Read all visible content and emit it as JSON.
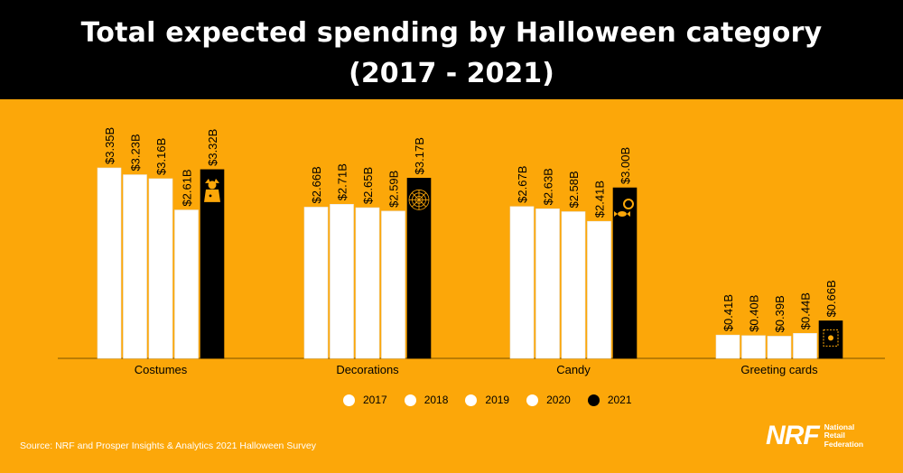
{
  "header": {
    "title_line1": "Total expected spending by Halloween category",
    "title_line2": "(2017 - 2021)"
  },
  "colors": {
    "background": "#fca709",
    "header": "#000000",
    "bar_prior": "#ffffff",
    "bar_2021": "#000000",
    "icon": "#fca709"
  },
  "chart_data": {
    "type": "bar",
    "title": "Total expected spending by Halloween category (2017 - 2021)",
    "categories": [
      "Costumes",
      "Decorations",
      "Candy",
      "Greeting cards"
    ],
    "series": [
      {
        "name": "2017",
        "values": [
          3.35,
          2.66,
          2.67,
          0.41
        ],
        "labels": [
          "$3.35B",
          "$2.66B",
          "$2.67B",
          "$0.41B"
        ],
        "color": "#ffffff"
      },
      {
        "name": "2018",
        "values": [
          3.23,
          2.71,
          2.63,
          0.4
        ],
        "labels": [
          "$3.23B",
          "$2.71B",
          "$2.63B",
          "$0.40B"
        ],
        "color": "#ffffff"
      },
      {
        "name": "2019",
        "values": [
          3.16,
          2.65,
          2.58,
          0.39
        ],
        "labels": [
          "$3.16B",
          "$2.65B",
          "$2.58B",
          "$0.39B"
        ],
        "color": "#ffffff"
      },
      {
        "name": "2020",
        "values": [
          2.61,
          2.59,
          2.41,
          0.44
        ],
        "labels": [
          "$2.61B",
          "$2.59B",
          "$2.41B",
          "$0.44B"
        ],
        "color": "#ffffff"
      },
      {
        "name": "2021",
        "values": [
          3.32,
          3.17,
          3.0,
          0.66
        ],
        "labels": [
          "$3.32B",
          "$3.17B",
          "$3.00B",
          "$0.66B"
        ],
        "color": "#000000"
      }
    ],
    "category_icons": [
      "costume-icon",
      "spiderweb-icon",
      "candy-icon",
      "greeting-card-icon"
    ],
    "ylim": [
      0,
      3.6
    ],
    "grid": false,
    "legend": "bottom"
  },
  "source": "Source: NRF and Prosper Insights & Analytics 2021 Halloween Survey",
  "logo": {
    "mark": "NRF",
    "name_line1": "National",
    "name_line2": "Retail",
    "name_line3": "Federation"
  }
}
